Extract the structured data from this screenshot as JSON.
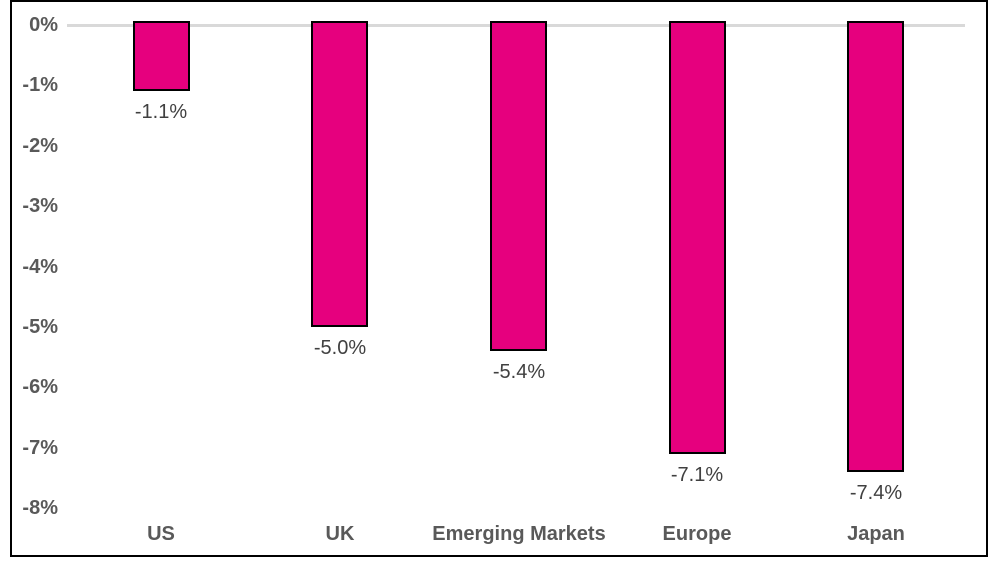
{
  "chart_data": {
    "type": "bar",
    "title": "",
    "xlabel": "",
    "ylabel": "",
    "categories": [
      "US",
      "UK",
      "Emerging Markets",
      "Europe",
      "Japan"
    ],
    "values": [
      -1.1,
      -5.0,
      -5.4,
      -7.1,
      -7.4
    ],
    "data_labels": [
      "-1.1%",
      "-5.0%",
      "-5.4%",
      "-7.1%",
      "-7.4%"
    ],
    "y_ticks": [
      {
        "label": "0%",
        "value": 0
      },
      {
        "label": "-1%",
        "value": -1
      },
      {
        "label": "-2%",
        "value": -2
      },
      {
        "label": "-3%",
        "value": -3
      },
      {
        "label": "-4%",
        "value": -4
      },
      {
        "label": "-5%",
        "value": -5
      },
      {
        "label": "-6%",
        "value": -6
      },
      {
        "label": "-7%",
        "value": -7
      },
      {
        "label": "-8%",
        "value": -8
      }
    ],
    "ylim": [
      -8,
      0
    ],
    "gridlines": "zero-line-only",
    "legend_position": "none"
  },
  "colors": {
    "bar_fill": "#E6007E",
    "bar_border": "#000000",
    "zero_line": "#D9D9D9",
    "axis_text": "#595959",
    "data_label_text": "#404040",
    "frame_border": "#000000",
    "background": "#FFFFFF"
  }
}
